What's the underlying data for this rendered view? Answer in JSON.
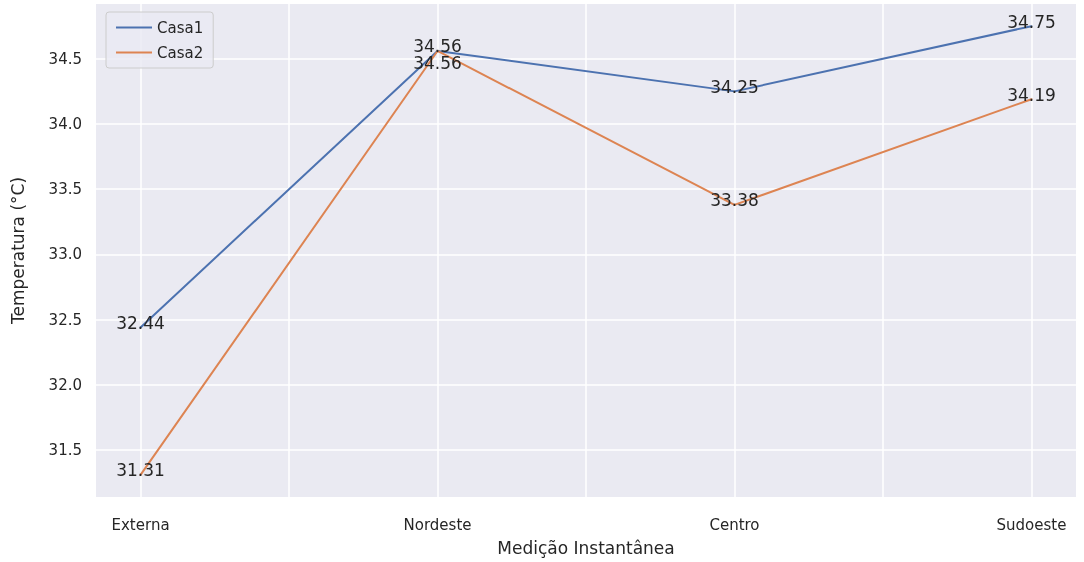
{
  "chart_data": {
    "type": "line",
    "xlabel": "Medição Instantânea",
    "ylabel": "Temperatura (°C)",
    "categories": [
      "Externa",
      "Nordeste",
      "Centro",
      "Sudoeste"
    ],
    "series": [
      {
        "name": "Casa1",
        "color": "#4c72b0",
        "values": [
          32.44,
          34.56,
          34.25,
          34.75
        ]
      },
      {
        "name": "Casa2",
        "color": "#dd8452",
        "values": [
          31.31,
          34.56,
          33.38,
          34.19
        ]
      }
    ],
    "ylim": [
      31.14,
      34.92
    ],
    "yticks": [
      31.5,
      {
        "value": 32,
        "label": "32.0"
      },
      32.5,
      {
        "value": 33,
        "label": "33.0"
      },
      33.5,
      {
        "value": 34,
        "label": "34.0"
      },
      34.5
    ],
    "grid": true,
    "legend": "top left",
    "data_labels": true,
    "marker": "none",
    "line_style": "solid"
  }
}
